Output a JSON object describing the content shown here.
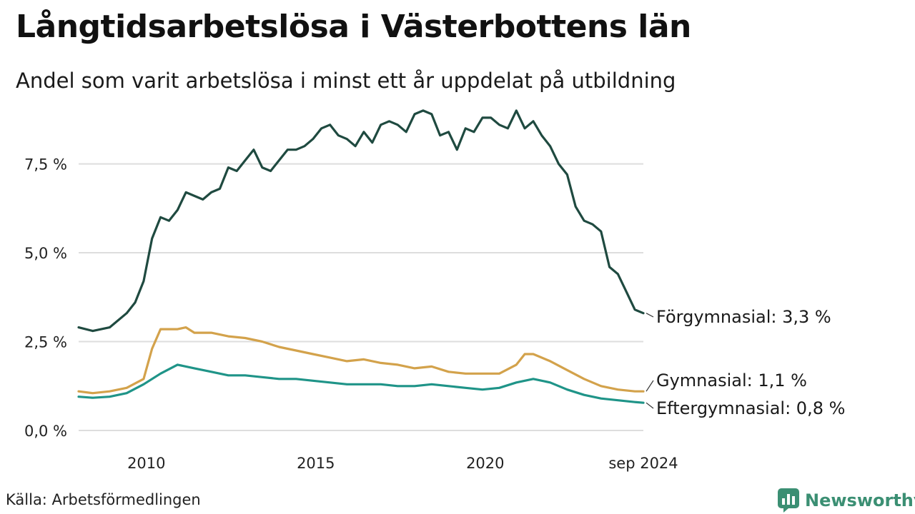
{
  "title": "Långtidsarbetslösa i Västerbottens län",
  "subtitle": "Andel som varit arbetslösa i minst ett år uppdelat på utbildning",
  "source": "Källa: Arbetsförmedlingen",
  "brand": {
    "name": "Newsworthy",
    "icon": "bar-chart-bubble-icon",
    "color": "#3b8f73"
  },
  "chart_data": {
    "type": "line",
    "x_label": "",
    "y_label": "",
    "x_range": [
      "2008-01",
      "2024-09"
    ],
    "ylim": [
      0,
      9.5
    ],
    "y_ticks": [
      0,
      2.5,
      5,
      7.5
    ],
    "y_tick_labels": [
      "0,0 %",
      "2,5 %",
      "5,0 %",
      "7,5 %"
    ],
    "x_ticks": [
      "2010-01",
      "2015-01",
      "2020-01",
      "2024-09"
    ],
    "x_tick_labels": [
      "2010",
      "2015",
      "2020",
      "sep 2024"
    ],
    "grid": "horizontal",
    "legend": "direct-labels-right",
    "series": [
      {
        "name": "Förgymnasial",
        "end_label": "Förgymnasial: 3,3 %",
        "color": "#1f4a40",
        "points": [
          [
            "2008-01",
            2.9
          ],
          [
            "2008-06",
            2.8
          ],
          [
            "2008-12",
            2.9
          ],
          [
            "2009-06",
            3.3
          ],
          [
            "2009-09",
            3.6
          ],
          [
            "2009-12",
            4.2
          ],
          [
            "2010-03",
            5.4
          ],
          [
            "2010-06",
            6.0
          ],
          [
            "2010-09",
            5.9
          ],
          [
            "2010-12",
            6.2
          ],
          [
            "2011-03",
            6.7
          ],
          [
            "2011-06",
            6.6
          ],
          [
            "2011-09",
            6.5
          ],
          [
            "2011-12",
            6.7
          ],
          [
            "2012-03",
            6.8
          ],
          [
            "2012-06",
            7.4
          ],
          [
            "2012-09",
            7.3
          ],
          [
            "2012-12",
            7.6
          ],
          [
            "2013-03",
            7.9
          ],
          [
            "2013-06",
            7.4
          ],
          [
            "2013-09",
            7.3
          ],
          [
            "2013-12",
            7.6
          ],
          [
            "2014-03",
            7.9
          ],
          [
            "2014-06",
            7.9
          ],
          [
            "2014-09",
            8.0
          ],
          [
            "2014-12",
            8.2
          ],
          [
            "2015-03",
            8.5
          ],
          [
            "2015-06",
            8.6
          ],
          [
            "2015-09",
            8.3
          ],
          [
            "2015-12",
            8.2
          ],
          [
            "2016-03",
            8.0
          ],
          [
            "2016-06",
            8.4
          ],
          [
            "2016-09",
            8.1
          ],
          [
            "2016-12",
            8.6
          ],
          [
            "2017-03",
            8.7
          ],
          [
            "2017-06",
            8.6
          ],
          [
            "2017-09",
            8.4
          ],
          [
            "2017-12",
            8.9
          ],
          [
            "2018-03",
            9.0
          ],
          [
            "2018-06",
            8.9
          ],
          [
            "2018-09",
            8.3
          ],
          [
            "2018-12",
            8.4
          ],
          [
            "2019-03",
            7.9
          ],
          [
            "2019-06",
            8.5
          ],
          [
            "2019-09",
            8.4
          ],
          [
            "2019-12",
            8.8
          ],
          [
            "2020-03",
            8.8
          ],
          [
            "2020-06",
            8.6
          ],
          [
            "2020-09",
            8.5
          ],
          [
            "2020-12",
            9.0
          ],
          [
            "2021-03",
            8.5
          ],
          [
            "2021-06",
            8.7
          ],
          [
            "2021-09",
            8.3
          ],
          [
            "2021-12",
            8.0
          ],
          [
            "2022-03",
            7.5
          ],
          [
            "2022-06",
            7.2
          ],
          [
            "2022-09",
            6.3
          ],
          [
            "2022-12",
            5.9
          ],
          [
            "2023-03",
            5.8
          ],
          [
            "2023-06",
            5.6
          ],
          [
            "2023-09",
            4.6
          ],
          [
            "2023-12",
            4.4
          ],
          [
            "2024-03",
            3.9
          ],
          [
            "2024-06",
            3.4
          ],
          [
            "2024-09",
            3.3
          ]
        ]
      },
      {
        "name": "Gymnasial",
        "end_label": "Gymnasial: 1,1 %",
        "color": "#d3a24b",
        "points": [
          [
            "2008-01",
            1.1
          ],
          [
            "2008-06",
            1.05
          ],
          [
            "2008-12",
            1.1
          ],
          [
            "2009-06",
            1.2
          ],
          [
            "2009-12",
            1.45
          ],
          [
            "2010-03",
            2.3
          ],
          [
            "2010-06",
            2.85
          ],
          [
            "2010-12",
            2.85
          ],
          [
            "2011-03",
            2.9
          ],
          [
            "2011-06",
            2.75
          ],
          [
            "2011-12",
            2.75
          ],
          [
            "2012-06",
            2.65
          ],
          [
            "2012-12",
            2.6
          ],
          [
            "2013-06",
            2.5
          ],
          [
            "2013-12",
            2.35
          ],
          [
            "2014-06",
            2.25
          ],
          [
            "2014-12",
            2.15
          ],
          [
            "2015-06",
            2.05
          ],
          [
            "2015-12",
            1.95
          ],
          [
            "2016-06",
            2.0
          ],
          [
            "2016-12",
            1.9
          ],
          [
            "2017-06",
            1.85
          ],
          [
            "2017-12",
            1.75
          ],
          [
            "2018-06",
            1.8
          ],
          [
            "2018-12",
            1.65
          ],
          [
            "2019-06",
            1.6
          ],
          [
            "2019-12",
            1.6
          ],
          [
            "2020-06",
            1.6
          ],
          [
            "2020-12",
            1.85
          ],
          [
            "2021-03",
            2.15
          ],
          [
            "2021-06",
            2.15
          ],
          [
            "2021-12",
            1.95
          ],
          [
            "2022-06",
            1.7
          ],
          [
            "2022-12",
            1.45
          ],
          [
            "2023-06",
            1.25
          ],
          [
            "2023-12",
            1.15
          ],
          [
            "2024-06",
            1.1
          ],
          [
            "2024-09",
            1.1
          ]
        ]
      },
      {
        "name": "Eftergymnasial",
        "end_label": "Eftergymnasial: 0,8 %",
        "color": "#1f9488",
        "points": [
          [
            "2008-01",
            0.95
          ],
          [
            "2008-06",
            0.92
          ],
          [
            "2008-12",
            0.95
          ],
          [
            "2009-06",
            1.05
          ],
          [
            "2009-12",
            1.3
          ],
          [
            "2010-06",
            1.6
          ],
          [
            "2010-12",
            1.85
          ],
          [
            "2011-06",
            1.75
          ],
          [
            "2011-12",
            1.65
          ],
          [
            "2012-06",
            1.55
          ],
          [
            "2012-12",
            1.55
          ],
          [
            "2013-06",
            1.5
          ],
          [
            "2013-12",
            1.45
          ],
          [
            "2014-06",
            1.45
          ],
          [
            "2014-12",
            1.4
          ],
          [
            "2015-06",
            1.35
          ],
          [
            "2015-12",
            1.3
          ],
          [
            "2016-06",
            1.3
          ],
          [
            "2016-12",
            1.3
          ],
          [
            "2017-06",
            1.25
          ],
          [
            "2017-12",
            1.25
          ],
          [
            "2018-06",
            1.3
          ],
          [
            "2018-12",
            1.25
          ],
          [
            "2019-06",
            1.2
          ],
          [
            "2019-12",
            1.15
          ],
          [
            "2020-06",
            1.2
          ],
          [
            "2020-12",
            1.35
          ],
          [
            "2021-06",
            1.45
          ],
          [
            "2021-12",
            1.35
          ],
          [
            "2022-06",
            1.15
          ],
          [
            "2022-12",
            1.0
          ],
          [
            "2023-06",
            0.9
          ],
          [
            "2023-12",
            0.85
          ],
          [
            "2024-06",
            0.8
          ],
          [
            "2024-09",
            0.78
          ]
        ]
      }
    ]
  }
}
